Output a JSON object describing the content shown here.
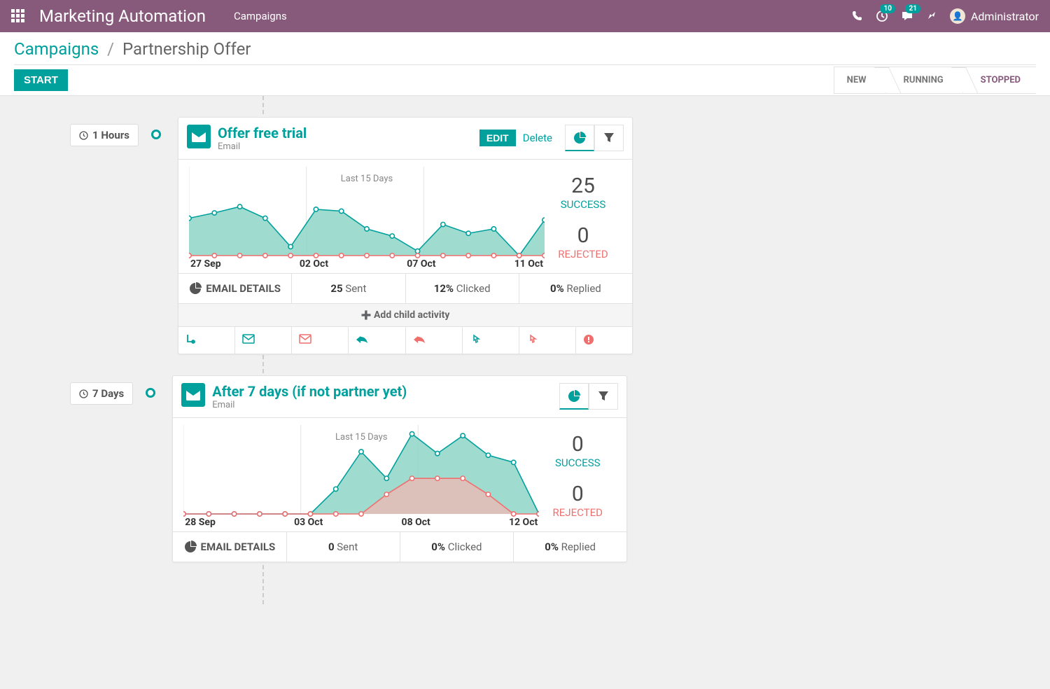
{
  "navbar": {
    "app_title": "Marketing Automation",
    "nav_link": "Campaigns",
    "badge_activities": "10",
    "badge_messages": "21",
    "user_name": "Administrator"
  },
  "breadcrumb": {
    "link": "Campaigns",
    "current": "Partnership Offer"
  },
  "actions": {
    "start": "START"
  },
  "status": {
    "new": "NEW",
    "running": "RUNNING",
    "stopped": "STOPPED"
  },
  "cards": [
    {
      "delay_label": "1 Hours",
      "title": "Offer free trial",
      "subtitle": "Email",
      "edit": "EDIT",
      "delete": "Delete",
      "chart": {
        "title_overlay": "Last 15 Days",
        "type": "area",
        "xlabels": [
          "27 Sep",
          "02 Oct",
          "07 Oct",
          "11 Oct"
        ],
        "success_y": [
          42,
          48,
          55,
          42,
          10,
          52,
          50,
          30,
          22,
          5,
          35,
          25,
          30,
          0,
          40
        ],
        "rejected_y": [
          0,
          0,
          0,
          0,
          0,
          0,
          0,
          0,
          0,
          0,
          0,
          0,
          0,
          0,
          0
        ],
        "ymax": 100,
        "fill_success": "#8fd5c7",
        "stroke_success": "#00a09d",
        "fill_rejected": "#f5b5b0",
        "stroke_rejected": "#ef6f6f",
        "marker_r": 3,
        "grid_color": "#e5e5e5"
      },
      "stats": {
        "success_num": "25",
        "success_lbl": "SUCCESS",
        "rejected_num": "0",
        "rejected_lbl": "REJECTED"
      },
      "details": {
        "head": "EMAIL DETAILS",
        "sent_n": "25",
        "sent_l": "Sent",
        "click_n": "12%",
        "click_l": "Clicked",
        "reply_n": "0%",
        "reply_l": "Replied"
      },
      "add_child": "Add child activity",
      "has_triggers": true
    },
    {
      "delay_label": "7 Days",
      "title": "After 7 days (if not partner yet)",
      "subtitle": "Email",
      "chart": {
        "title_overlay": "Last 15 Days",
        "type": "area",
        "xlabels": [
          "28 Sep",
          "03 Oct",
          "08 Oct",
          "12 Oct"
        ],
        "success_y": [
          0,
          0,
          0,
          0,
          0,
          0,
          28,
          70,
          40,
          90,
          68,
          88,
          66,
          58,
          0
        ],
        "rejected_y": [
          0,
          0,
          0,
          0,
          0,
          0,
          0,
          0,
          22,
          40,
          40,
          40,
          22,
          0,
          0
        ],
        "ymax": 100,
        "fill_success": "#8fd5c7",
        "stroke_success": "#00a09d",
        "fill_rejected": "#f5b5b0",
        "stroke_rejected": "#ef6f6f",
        "marker_r": 3,
        "grid_color": "#e5e5e5"
      },
      "stats": {
        "success_num": "0",
        "success_lbl": "SUCCESS",
        "rejected_num": "0",
        "rejected_lbl": "REJECTED"
      },
      "details": {
        "head": "EMAIL DETAILS",
        "sent_n": "0",
        "sent_l": "Sent",
        "click_n": "0%",
        "click_l": "Clicked",
        "reply_n": "0%",
        "reply_l": "Replied"
      },
      "has_triggers": false
    }
  ]
}
